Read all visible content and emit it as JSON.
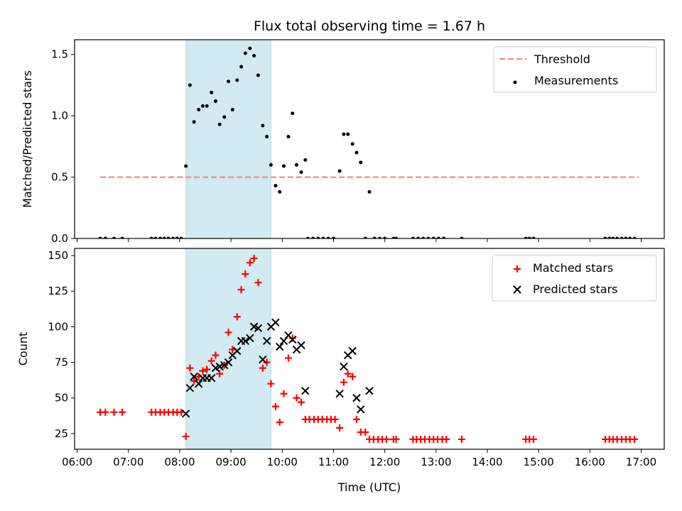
{
  "chart_data": {
    "type": "scatter",
    "title": "Flux total observing time = 1.67 h",
    "xlabel": "Time (UTC)",
    "x_ticks": [
      "06:00",
      "07:00",
      "08:00",
      "09:00",
      "10:00",
      "11:00",
      "12:00",
      "13:00",
      "14:00",
      "15:00",
      "16:00",
      "17:00"
    ],
    "xlim": [
      5.95,
      17.45
    ],
    "highlight_span": {
      "start": 8.12,
      "end": 9.78,
      "color": "#add8e6"
    },
    "panels": [
      {
        "ylabel": "Matched/Predicted stars",
        "ylim": [
          0,
          1.62
        ],
        "y_ticks": [
          0,
          0.5,
          1.0,
          1.5
        ],
        "y_tick_labels": [
          "0.0",
          "0.5",
          "1.0",
          "1.5"
        ],
        "legend_placement": "upper right",
        "threshold": {
          "name": "Threshold",
          "value": 0.5,
          "x_start": 6.45,
          "x_end": 16.95,
          "color": "#f08080"
        },
        "series": [
          {
            "name": "Measurements",
            "marker": "dot",
            "color": "#000000",
            "points": [
              [
                6.45,
                0
              ],
              [
                6.55,
                0
              ],
              [
                6.72,
                0
              ],
              [
                6.88,
                0
              ],
              [
                7.45,
                0
              ],
              [
                7.53,
                0
              ],
              [
                7.62,
                0
              ],
              [
                7.7,
                0
              ],
              [
                7.78,
                0
              ],
              [
                7.87,
                0
              ],
              [
                7.95,
                0
              ],
              [
                8.03,
                0
              ],
              [
                8.12,
                0.59
              ],
              [
                8.2,
                1.25
              ],
              [
                8.28,
                0.95
              ],
              [
                8.37,
                1.05
              ],
              [
                8.45,
                1.08
              ],
              [
                8.53,
                1.08
              ],
              [
                8.62,
                1.19
              ],
              [
                8.7,
                1.12
              ],
              [
                8.78,
                0.93
              ],
              [
                8.87,
                0.99
              ],
              [
                8.95,
                1.28
              ],
              [
                9.03,
                1.05
              ],
              [
                9.12,
                1.29
              ],
              [
                9.2,
                1.4
              ],
              [
                9.28,
                1.51
              ],
              [
                9.37,
                1.55
              ],
              [
                9.45,
                1.49
              ],
              [
                9.53,
                1.33
              ],
              [
                9.62,
                0.92
              ],
              [
                9.7,
                0.83
              ],
              [
                9.78,
                0.6
              ],
              [
                9.87,
                0.43
              ],
              [
                9.95,
                0.38
              ],
              [
                10.03,
                0.59
              ],
              [
                10.12,
                0.83
              ],
              [
                10.2,
                1.02
              ],
              [
                10.28,
                0.6
              ],
              [
                10.37,
                0.54
              ],
              [
                10.45,
                0.64
              ],
              [
                10.5,
                0
              ],
              [
                10.6,
                0
              ],
              [
                10.7,
                0
              ],
              [
                10.8,
                0
              ],
              [
                10.9,
                0
              ],
              [
                11.0,
                0
              ],
              [
                11.12,
                0.55
              ],
              [
                11.2,
                0.85
              ],
              [
                11.28,
                0.85
              ],
              [
                11.37,
                0.77
              ],
              [
                11.45,
                0.7
              ],
              [
                11.53,
                0.62
              ],
              [
                11.62,
                0
              ],
              [
                11.7,
                0.38
              ],
              [
                11.8,
                0
              ],
              [
                11.9,
                0
              ],
              [
                12.0,
                0
              ],
              [
                12.17,
                0
              ],
              [
                12.22,
                0
              ],
              [
                12.55,
                0
              ],
              [
                12.65,
                0
              ],
              [
                12.75,
                0
              ],
              [
                12.85,
                0
              ],
              [
                12.95,
                0
              ],
              [
                13.05,
                0
              ],
              [
                13.15,
                0
              ],
              [
                13.5,
                0
              ],
              [
                14.75,
                0
              ],
              [
                14.82,
                0
              ],
              [
                14.9,
                0
              ],
              [
                16.3,
                0
              ],
              [
                16.38,
                0
              ],
              [
                16.45,
                0
              ],
              [
                16.53,
                0
              ],
              [
                16.62,
                0
              ],
              [
                16.7,
                0
              ],
              [
                16.78,
                0
              ],
              [
                16.87,
                0
              ]
            ]
          }
        ]
      },
      {
        "ylabel": "Count",
        "ylim": [
          14,
          155
        ],
        "y_ticks": [
          25,
          50,
          75,
          100,
          125,
          150
        ],
        "y_tick_labels": [
          "25",
          "50",
          "75",
          "100",
          "125",
          "150"
        ],
        "legend_placement": "upper right",
        "series": [
          {
            "name": "Matched stars",
            "marker": "plus",
            "color": "#ff0000",
            "points": [
              [
                6.45,
                40
              ],
              [
                6.55,
                40
              ],
              [
                6.72,
                40
              ],
              [
                6.88,
                40
              ],
              [
                7.45,
                40
              ],
              [
                7.53,
                40
              ],
              [
                7.62,
                40
              ],
              [
                7.7,
                40
              ],
              [
                7.78,
                40
              ],
              [
                7.87,
                40
              ],
              [
                7.95,
                40
              ],
              [
                8.03,
                40
              ],
              [
                8.12,
                23
              ],
              [
                8.2,
                71
              ],
              [
                8.28,
                62
              ],
              [
                8.37,
                65
              ],
              [
                8.45,
                69
              ],
              [
                8.53,
                70
              ],
              [
                8.62,
                76
              ],
              [
                8.7,
                80
              ],
              [
                8.78,
                67
              ],
              [
                8.87,
                73
              ],
              [
                8.95,
                96
              ],
              [
                9.03,
                84
              ],
              [
                9.12,
                107
              ],
              [
                9.2,
                126
              ],
              [
                9.28,
                137
              ],
              [
                9.37,
                145
              ],
              [
                9.45,
                148
              ],
              [
                9.53,
                131
              ],
              [
                9.62,
                71
              ],
              [
                9.7,
                75
              ],
              [
                9.78,
                60
              ],
              [
                9.87,
                44
              ],
              [
                9.95,
                33
              ],
              [
                10.03,
                53
              ],
              [
                10.12,
                78
              ],
              [
                10.2,
                92
              ],
              [
                10.28,
                50
              ],
              [
                10.37,
                47
              ],
              [
                10.45,
                35
              ],
              [
                10.53,
                35
              ],
              [
                10.62,
                35
              ],
              [
                10.7,
                35
              ],
              [
                10.78,
                35
              ],
              [
                10.87,
                35
              ],
              [
                10.95,
                35
              ],
              [
                11.03,
                35
              ],
              [
                11.12,
                29
              ],
              [
                11.2,
                61
              ],
              [
                11.28,
                67
              ],
              [
                11.37,
                65
              ],
              [
                11.45,
                35
              ],
              [
                11.53,
                26
              ],
              [
                11.62,
                26
              ],
              [
                11.7,
                21
              ],
              [
                11.78,
                21
              ],
              [
                11.87,
                21
              ],
              [
                11.95,
                21
              ],
              [
                12.03,
                21
              ],
              [
                12.17,
                21
              ],
              [
                12.22,
                21
              ],
              [
                12.55,
                21
              ],
              [
                12.62,
                21
              ],
              [
                12.7,
                21
              ],
              [
                12.78,
                21
              ],
              [
                12.87,
                21
              ],
              [
                12.95,
                21
              ],
              [
                13.03,
                21
              ],
              [
                13.12,
                21
              ],
              [
                13.2,
                21
              ],
              [
                13.5,
                21
              ],
              [
                14.75,
                21
              ],
              [
                14.82,
                21
              ],
              [
                14.9,
                21
              ],
              [
                16.3,
                21
              ],
              [
                16.38,
                21
              ],
              [
                16.45,
                21
              ],
              [
                16.53,
                21
              ],
              [
                16.62,
                21
              ],
              [
                16.7,
                21
              ],
              [
                16.78,
                21
              ],
              [
                16.87,
                21
              ]
            ]
          },
          {
            "name": "Predicted stars",
            "marker": "x",
            "color": "#000000",
            "points": [
              [
                8.12,
                39
              ],
              [
                8.2,
                57
              ],
              [
                8.28,
                65
              ],
              [
                8.37,
                60
              ],
              [
                8.45,
                64
              ],
              [
                8.53,
                64
              ],
              [
                8.62,
                64
              ],
              [
                8.7,
                71
              ],
              [
                8.78,
                72
              ],
              [
                8.87,
                73
              ],
              [
                8.95,
                75
              ],
              [
                9.03,
                80
              ],
              [
                9.12,
                83
              ],
              [
                9.2,
                90
              ],
              [
                9.28,
                90
              ],
              [
                9.37,
                92
              ],
              [
                9.45,
                100
              ],
              [
                9.53,
                99
              ],
              [
                9.62,
                77
              ],
              [
                9.7,
                90
              ],
              [
                9.78,
                100
              ],
              [
                9.87,
                103
              ],
              [
                9.95,
                86
              ],
              [
                10.03,
                90
              ],
              [
                10.12,
                94
              ],
              [
                10.2,
                91
              ],
              [
                10.28,
                84
              ],
              [
                10.37,
                87
              ],
              [
                10.45,
                55
              ],
              [
                11.12,
                53
              ],
              [
                11.2,
                72
              ],
              [
                11.28,
                80
              ],
              [
                11.37,
                83
              ],
              [
                11.45,
                50
              ],
              [
                11.53,
                42
              ],
              [
                11.7,
                55
              ]
            ]
          }
        ]
      }
    ]
  }
}
